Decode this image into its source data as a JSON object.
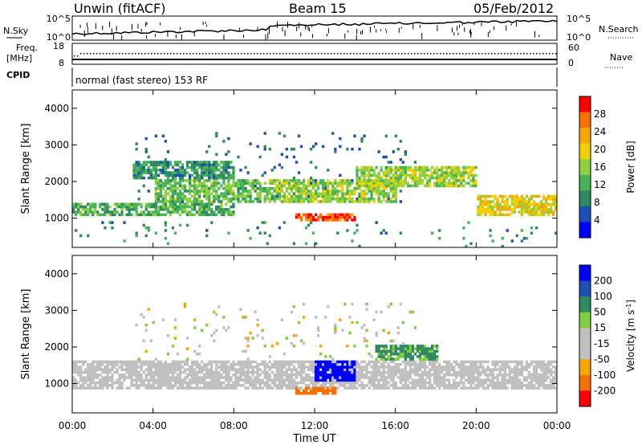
{
  "header": {
    "title": "Unwin (fitACF)",
    "beam": "Beam 15",
    "date": "05/Feb/2012"
  },
  "noise_panel": {
    "left_label": "N.Sky",
    "right_label": "N.Search",
    "top_tick": "10^5",
    "bottom_tick": "10^0"
  },
  "freq_panel": {
    "left_label_1": "Freq.",
    "left_label_2": "[MHz]",
    "left_ticks": [
      "18",
      "8"
    ],
    "right_label": "Nave",
    "right_ticks": [
      "60",
      "0"
    ]
  },
  "cpid_panel": {
    "label": "CPID",
    "program": "normal (fast stereo) 153 RF"
  },
  "colors": {
    "power": [
      "#0000ff",
      "#1c50b4",
      "#2f8a60",
      "#48b45a",
      "#8fd040",
      "#f0d000",
      "#f7a500",
      "#f77000",
      "#ff0000"
    ],
    "velocity": [
      "#0000ff",
      "#1c50b4",
      "#2f8a60",
      "#7fd040",
      "#c0c0c0",
      "#c0c0c0",
      "#f7a500",
      "#f77000",
      "#ff0000"
    ]
  },
  "chart_data": [
    {
      "type": "heatmap",
      "name": "power",
      "ylabel": "Slant Range [km]",
      "xlim": [
        "00:00",
        "24:00"
      ],
      "ylim": [
        200,
        4500
      ],
      "yticks": [
        "1000",
        "2000",
        "3000",
        "4000"
      ],
      "colorbar_label": "Power [dB]",
      "colorbar_ticks": [
        "28",
        "24",
        "20",
        "16",
        "12",
        "8",
        "4"
      ],
      "colorbar_range": [
        0,
        32
      ],
      "features": [
        {
          "x": [
            0,
            8
          ],
          "y": [
            1000,
            1400
          ],
          "value": 12
        },
        {
          "x": [
            4,
            10
          ],
          "y": [
            1400,
            2000
          ],
          "value": 14
        },
        {
          "x": [
            3,
            8
          ],
          "y": [
            2000,
            2500
          ],
          "value": 10
        },
        {
          "x": [
            10,
            16
          ],
          "y": [
            1400,
            2000
          ],
          "value": 16
        },
        {
          "x": [
            11,
            14
          ],
          "y": [
            900,
            1100
          ],
          "value": 28
        },
        {
          "x": [
            14,
            20
          ],
          "y": [
            1800,
            2400
          ],
          "value": 16
        },
        {
          "x": [
            20,
            24
          ],
          "y": [
            1000,
            1600
          ],
          "value": 20
        }
      ]
    },
    {
      "type": "heatmap",
      "name": "velocity",
      "ylabel": "Slant Range [km]",
      "xlabel": "Time UT",
      "xlim": [
        "00:00",
        "24:00"
      ],
      "xticks": [
        "00:00",
        "04:00",
        "08:00",
        "12:00",
        "16:00",
        "20:00",
        "00:00"
      ],
      "ylim": [
        200,
        4500
      ],
      "yticks": [
        "1000",
        "2000",
        "3000",
        "4000"
      ],
      "colorbar_label": "Velocity [m s-1]",
      "colorbar_label_parts": {
        "main": "Velocity [m s",
        "sup": "-1",
        "end": "]"
      },
      "colorbar_ticks": [
        "200",
        "100",
        "50",
        "15",
        "-15",
        "-50",
        "-100",
        "-200"
      ],
      "features": [
        {
          "x": [
            0,
            24
          ],
          "y": [
            800,
            1600
          ],
          "value": 0
        },
        {
          "x": [
            12,
            14
          ],
          "y": [
            1000,
            1600
          ],
          "value": 200
        },
        {
          "x": [
            11,
            13
          ],
          "y": [
            700,
            900
          ],
          "value": -60
        },
        {
          "x": [
            15,
            18
          ],
          "y": [
            1600,
            2000
          ],
          "value": 40
        }
      ]
    }
  ]
}
